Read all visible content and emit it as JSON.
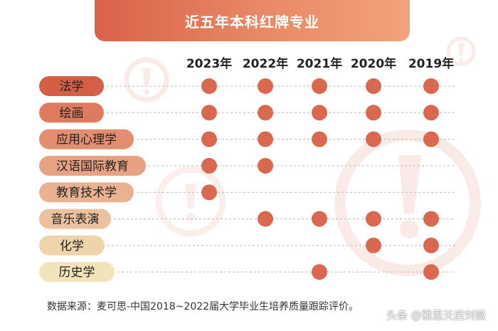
{
  "colors": {
    "dot": "#d9684f",
    "banner_start": "#d9624a",
    "banner_end": "#f2a27c",
    "pills": [
      "#d45f45",
      "#de7a5e",
      "#e38e70",
      "#e8a182",
      "#eab291",
      "#ecc29e",
      "#efd3aa",
      "#f2e3b8"
    ],
    "pill_text": [
      "#ffffff",
      "#ffffff",
      "#ffffff",
      "#ffffff",
      "#ffffff",
      "#222222",
      "#222222",
      "#222222"
    ]
  },
  "watermark": "头条 @雅思天后刘薇",
  "chart_data": {
    "type": "table",
    "title": "近五年本科红牌专业",
    "years": [
      "2023年",
      "2022年",
      "2021年",
      "2020年",
      "2019年"
    ],
    "categories": [
      "法学",
      "绘画",
      "应用心理学",
      "汉语国际教育",
      "教育技术学",
      "音乐表演",
      "化学",
      "历史学"
    ],
    "marks": [
      [
        1,
        1,
        1,
        1,
        1
      ],
      [
        1,
        1,
        1,
        1,
        1
      ],
      [
        1,
        1,
        1,
        1,
        1
      ],
      [
        1,
        1,
        0,
        0,
        0
      ],
      [
        1,
        0,
        0,
        0,
        0
      ],
      [
        0,
        1,
        1,
        1,
        1
      ],
      [
        0,
        0,
        0,
        1,
        1
      ],
      [
        0,
        0,
        1,
        0,
        1
      ]
    ],
    "source": "数据来源：麦可思-中国2018~2022届大学毕业生培养质量跟踪评价。"
  }
}
